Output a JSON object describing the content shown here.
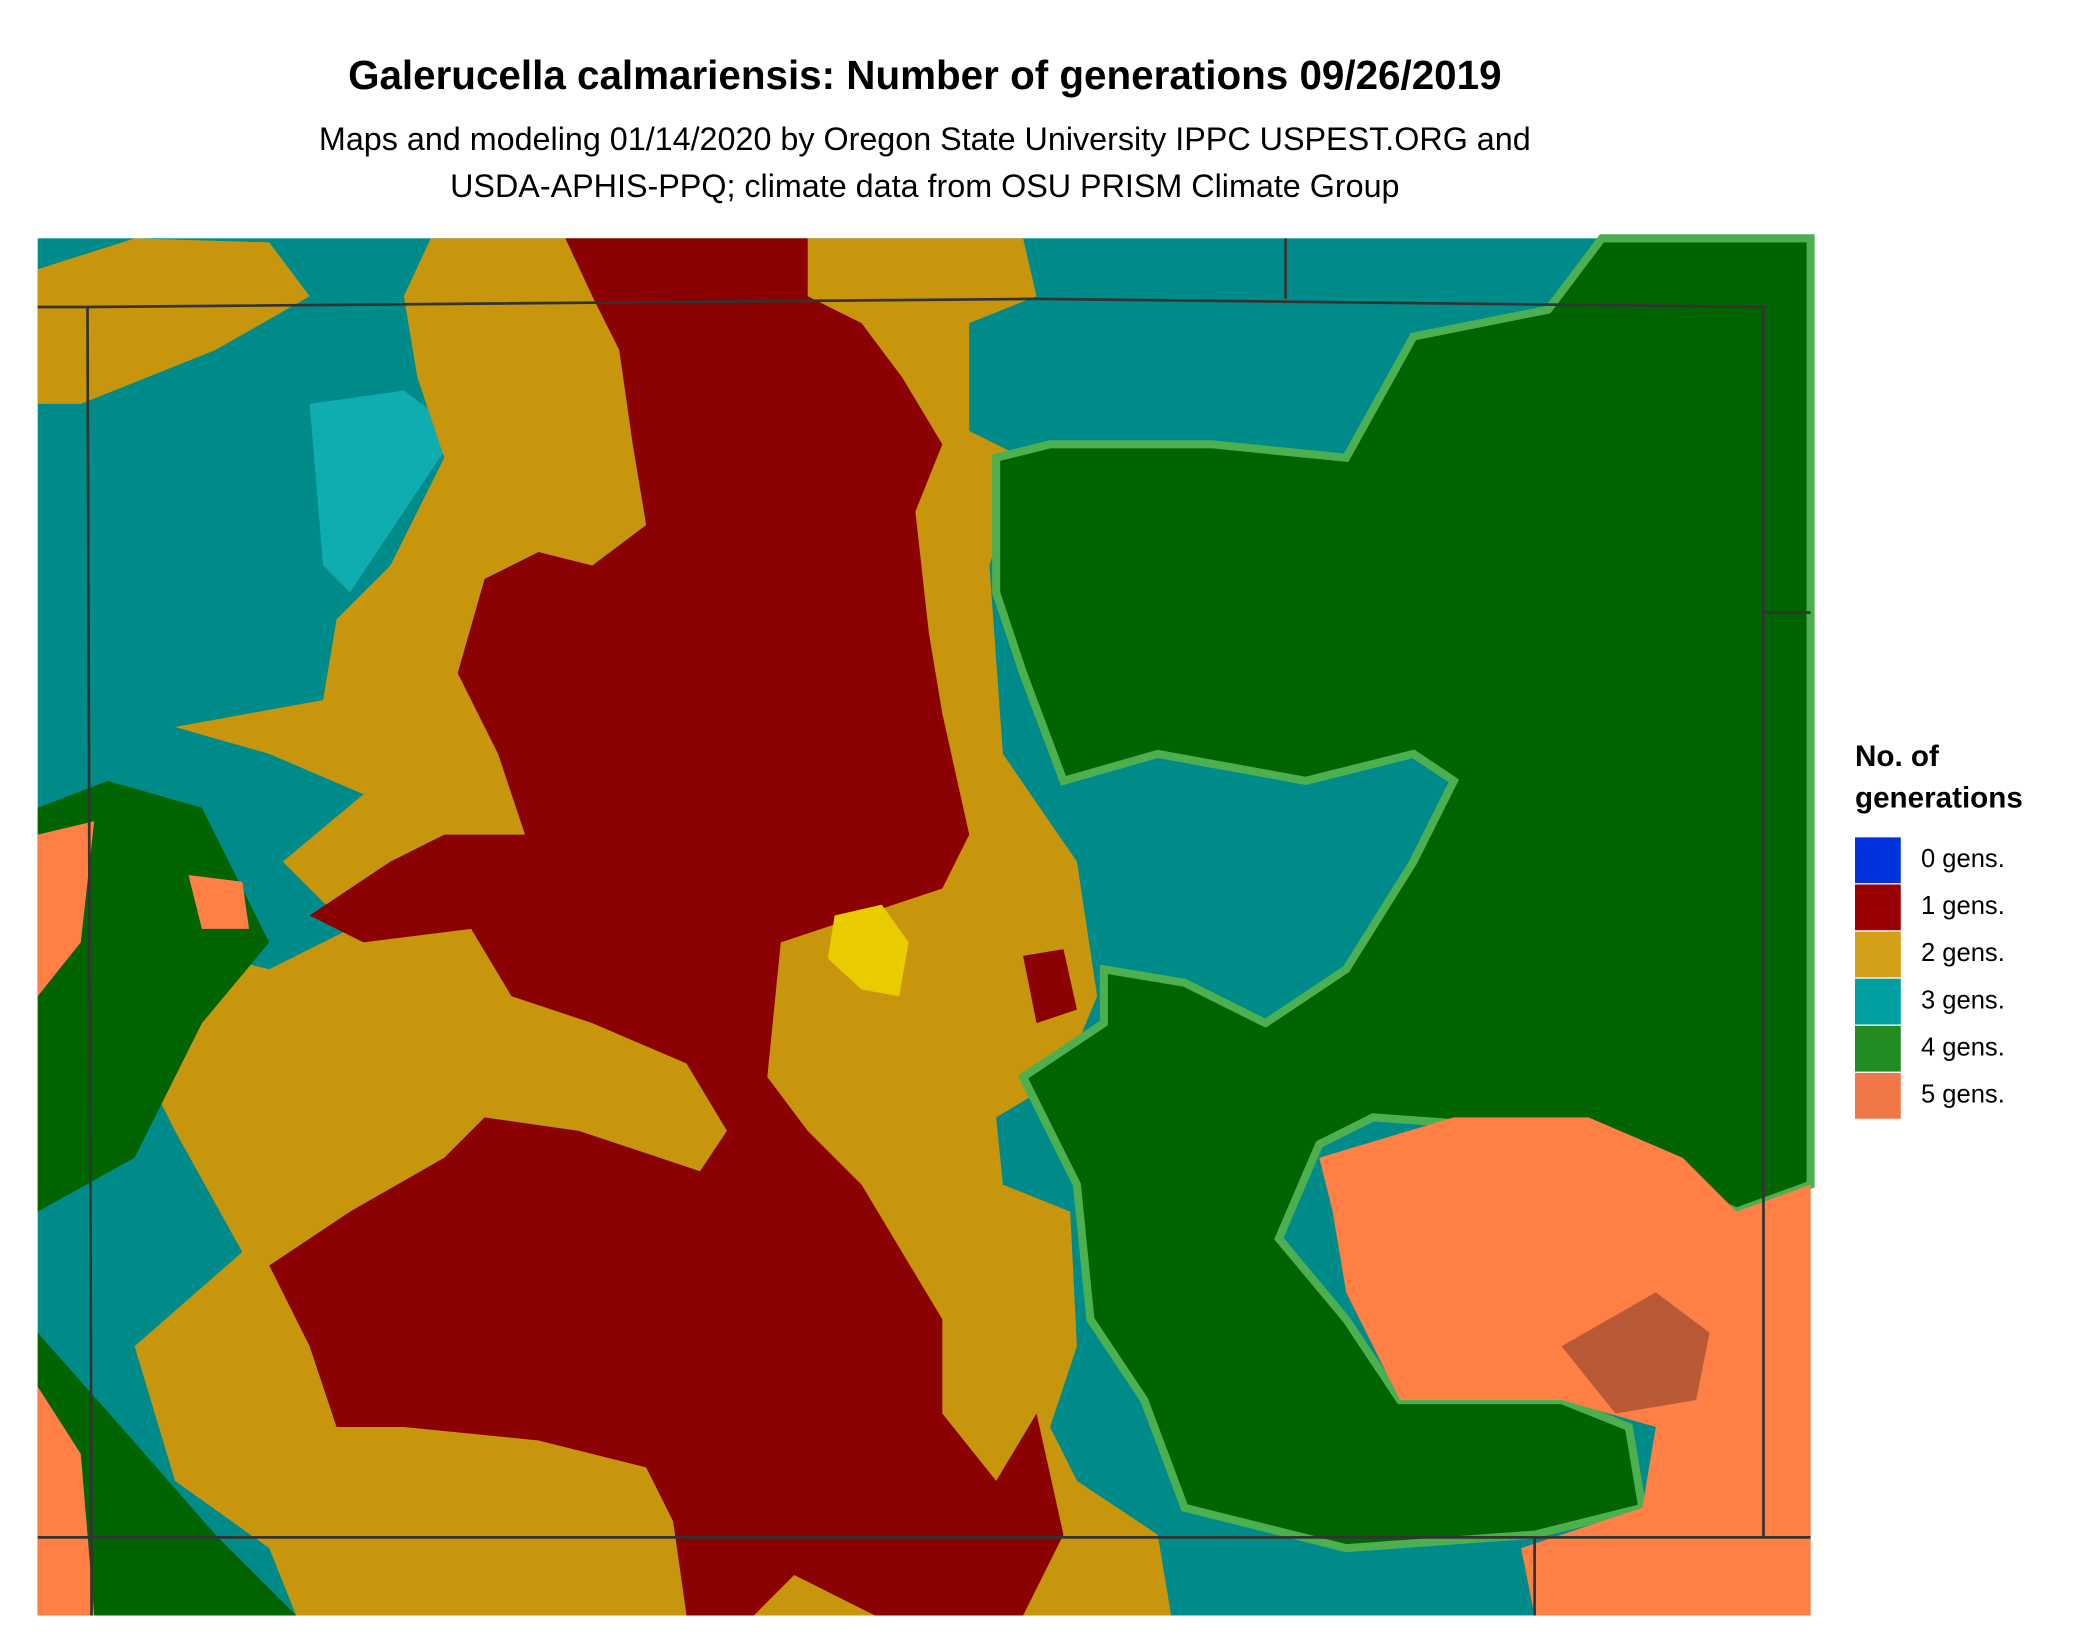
{
  "title": "Galerucella calmariensis: Number of generations 09/26/2019",
  "subtitle": [
    "Maps and modeling 01/14/2020 by Oregon State University IPPC USPEST.ORG and",
    "USDA-APHIS-PPQ; climate data from OSU PRISM Climate Group"
  ],
  "legend": {
    "title": [
      "No. of",
      "generations"
    ],
    "items": [
      {
        "label": "0 gens.",
        "color": "#0033dd"
      },
      {
        "label": "1 gens.",
        "color": "#990000"
      },
      {
        "label": "2 gens.",
        "color": "#d4a017"
      },
      {
        "label": "3 gens.",
        "color": "#00a0a0"
      },
      {
        "label": "4 gens.",
        "color": "#228b22"
      },
      {
        "label": "5 gens.",
        "color": "#f07848"
      }
    ]
  }
}
